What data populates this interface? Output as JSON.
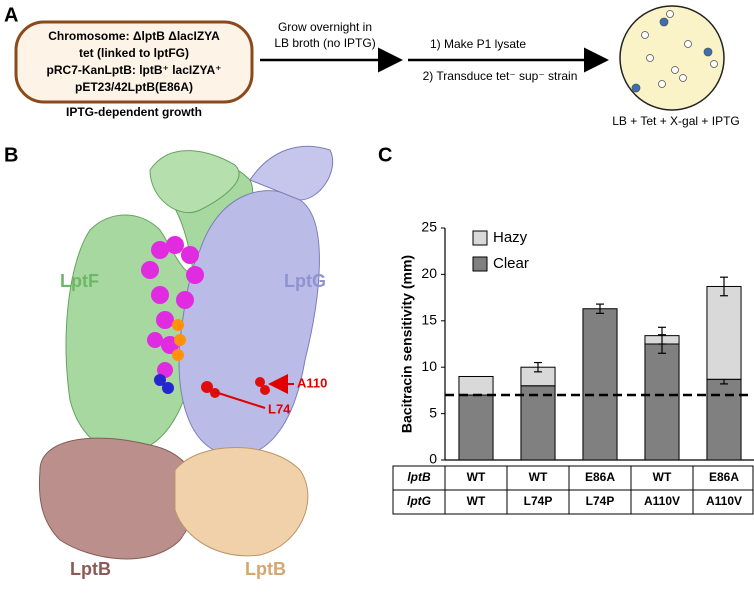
{
  "panel_labels": [
    "A",
    "B",
    "C"
  ],
  "panel_a": {
    "box_lines": [
      "Chromosome: ΔlptB ΔlacIZYA",
      "tet (linked to lptFG)",
      "pRC7-KanLptB: lptB⁺ lacIZYA⁺",
      "pET23/42LptB(E86A)"
    ],
    "box_caption": "IPTG-dependent growth",
    "step1": [
      "Grow overnight in",
      "LB broth (no IPTG)"
    ],
    "step2": [
      "1) Make P1 lysate",
      "2) Transduce tet⁻ sup⁻ strain"
    ],
    "plate_caption": "LB + Tet + X-gal + IPTG"
  },
  "panel_b": {
    "lptf": "LptF",
    "lptg": "LptG",
    "lptb_left": "LptB",
    "lptb_right": "LptB",
    "a110": "A110",
    "l74": "L74"
  },
  "chart_data": {
    "type": "bar",
    "stacked": true,
    "ylabel": "Bacitracin sensitivity (mm)",
    "ylim": [
      0,
      25
    ],
    "yticks": [
      0,
      5,
      10,
      15,
      20,
      25
    ],
    "category_rows": [
      {
        "name": "lptB",
        "labels": [
          "WT",
          "WT",
          "E86A",
          "WT",
          "E86A"
        ]
      },
      {
        "name": "lptG",
        "labels": [
          "WT",
          "L74P",
          "L74P",
          "A110V",
          "A110V"
        ]
      }
    ],
    "series": [
      {
        "name": "Clear",
        "color": "#808080",
        "values": [
          7.0,
          8.0,
          16.3,
          12.5,
          8.7
        ],
        "errors": [
          null,
          null,
          0.5,
          1.0,
          0.5
        ]
      },
      {
        "name": "Hazy",
        "color": "#d9d9d9",
        "values": [
          2.0,
          2.0,
          0,
          0.9,
          10.0
        ],
        "errors": [
          null,
          0.5,
          null,
          0.9,
          1.0
        ]
      }
    ],
    "reference_line": 7,
    "legend": "upper left"
  }
}
